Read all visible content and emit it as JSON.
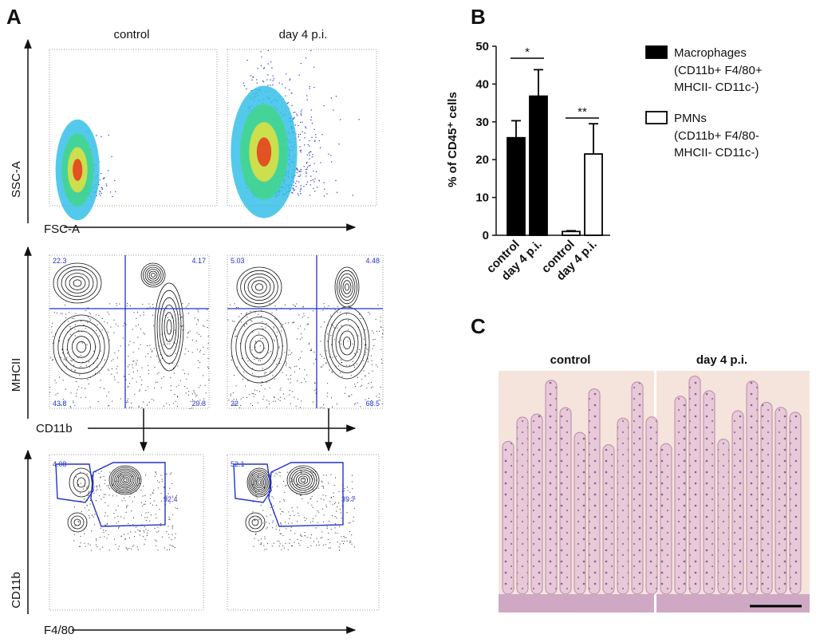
{
  "panels": {
    "A": {
      "label": "A",
      "conditions": [
        "control",
        "day 4 p.i."
      ],
      "scatter_axes": {
        "x": "FSC-A",
        "y": "SSC-A"
      },
      "quadrant_axes": {
        "x": "CD11b",
        "y": "MHCII"
      },
      "quadrant_gates": [
        [
          22.3,
          4.17,
          43.8,
          29.8
        ],
        [
          5.03,
          4.48,
          22,
          68.5
        ]
      ],
      "gate_axes": {
        "x": "F4/80",
        "y": "CD11b"
      },
      "gates": [
        [
          4.08,
          92.4
        ],
        [
          52.1,
          39.7
        ]
      ]
    },
    "B": {
      "label": "B"
    },
    "C": {
      "label": "C",
      "conditions": [
        "control",
        "day 4 p.i."
      ]
    }
  },
  "chart_data": {
    "type": "bar",
    "y_label": "% of CD45⁺ cells",
    "categories": [
      "control",
      "day 4 p.i."
    ],
    "series": [
      {
        "name": "Macrophages",
        "description": [
          "(CD11b+ F4/80+",
          "MHCII- CD11c-)"
        ],
        "color": "#000000",
        "values": [
          25.8,
          36.8
        ],
        "errors": [
          4.5,
          7
        ]
      },
      {
        "name": "PMNs",
        "description": [
          "(CD11b+ F4/80-",
          "MHCII- CD11c-)"
        ],
        "color": "#ffffff",
        "values": [
          1,
          21.5
        ],
        "errors": [
          0.2,
          8
        ]
      }
    ],
    "significance": [
      "*",
      "**"
    ],
    "ylim": [
      0,
      50
    ],
    "yticks": [
      0,
      10,
      20,
      30,
      40,
      50
    ]
  }
}
